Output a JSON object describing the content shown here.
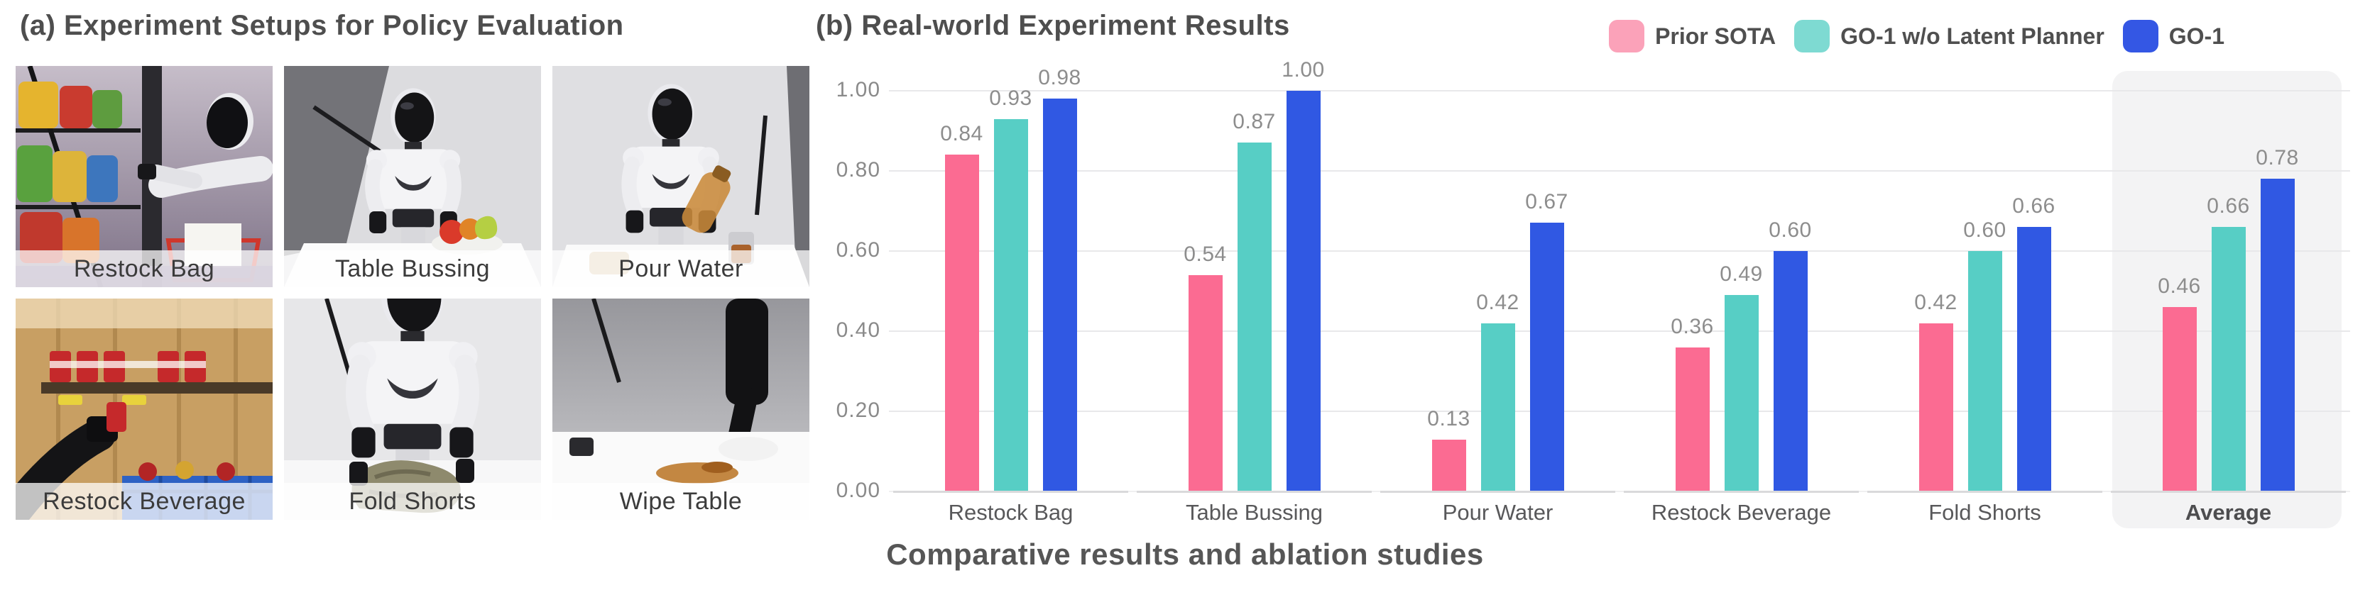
{
  "panel_a": {
    "title": "(a) Experiment Setups for Policy Evaluation",
    "setups": [
      {
        "label": "Restock Bag"
      },
      {
        "label": "Table Bussing"
      },
      {
        "label": "Pour Water"
      },
      {
        "label": "Restock Beverage"
      },
      {
        "label": "Fold Shorts"
      },
      {
        "label": "Wipe Table"
      }
    ]
  },
  "panel_b": {
    "title": "(b) Real-world Experiment Results",
    "caption": "Comparative results and ablation studies"
  },
  "chart_data": {
    "type": "bar",
    "categories": [
      "Restock Bag",
      "Table Bussing",
      "Pour Water",
      "Restock Beverage",
      "Fold Shorts",
      "Average"
    ],
    "series": [
      {
        "name": "Prior SOTA",
        "color": "#fb6b92",
        "legend_color": "#fba2b9",
        "values": [
          0.84,
          0.54,
          0.13,
          0.36,
          0.42,
          0.46
        ]
      },
      {
        "name": "GO-1 w/o Latent Planner",
        "color": "#57cec5",
        "legend_color": "#7edad2",
        "values": [
          0.93,
          0.87,
          0.42,
          0.49,
          0.6,
          0.66
        ]
      },
      {
        "name": "GO-1",
        "color": "#3058e3",
        "legend_color": "#3457e4",
        "values": [
          0.98,
          1.0,
          0.67,
          0.6,
          0.66,
          0.78
        ]
      }
    ],
    "ylim": [
      0,
      1
    ],
    "yticks": [
      "0.00",
      "0.20",
      "0.40",
      "0.60",
      "0.80",
      "1.00"
    ],
    "value_label_decimals": 2,
    "grid": true,
    "legend_position": "top-right",
    "highlight_category": "Average",
    "highlight_color": "#f3f3f4",
    "gridline_color": "#e8e8ea",
    "value_label_color": "#8d8d8d"
  }
}
